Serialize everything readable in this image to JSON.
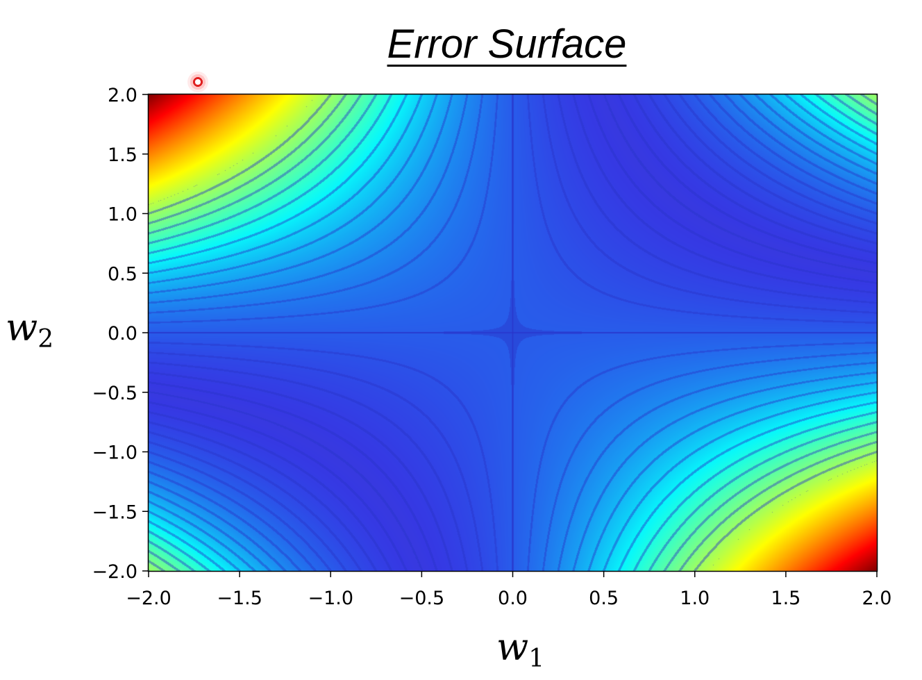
{
  "chart_data": {
    "type": "heatmap",
    "title": "Error Surface",
    "xlabel": "w",
    "xlabel_sub": "1",
    "ylabel": "w",
    "ylabel_sub": "2",
    "xlim": [
      -2.0,
      2.0
    ],
    "ylim": [
      -2.0,
      2.0
    ],
    "xticks": [
      "−2.0",
      "−1.5",
      "−1.0",
      "−0.5",
      "0.0",
      "0.5",
      "1.0",
      "1.5",
      "2.0"
    ],
    "yticks": [
      "2.0",
      "1.5",
      "1.0",
      "0.5",
      "0.0",
      "−0.5",
      "−1.0",
      "−1.5",
      "−2.0"
    ],
    "surface": "(w1*w2 - 1)^2",
    "colormap": "jet",
    "contours": true,
    "grid": false
  },
  "colors": {
    "low": "#7a7fc0",
    "contour": "#2a34c8",
    "high": "#c80000"
  },
  "cursor": {
    "icon": "cursor-highlight-icon"
  }
}
